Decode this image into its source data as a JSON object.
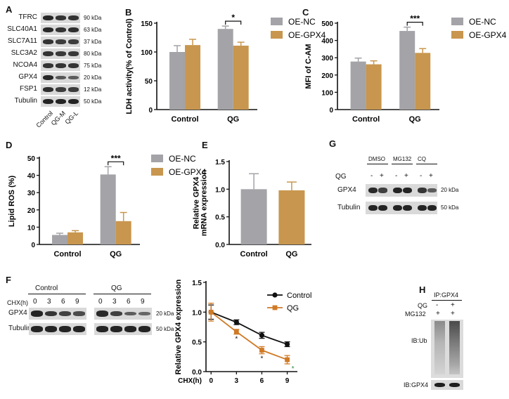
{
  "panels": {
    "a": {
      "letter": "A",
      "rows": [
        {
          "name": "TFRC",
          "kda": "90 kDa",
          "bands": [
            0.9,
            0.8,
            0.8
          ]
        },
        {
          "name": "SLC40A1",
          "kda": "63 kDa",
          "bands": [
            0.9,
            0.8,
            0.85
          ]
        },
        {
          "name": "SLC7A11",
          "kda": "37 kDa",
          "bands": [
            0.8,
            0.7,
            0.7
          ]
        },
        {
          "name": "SLC3A2",
          "kda": "80 kDa",
          "bands": [
            0.8,
            0.75,
            0.75
          ]
        },
        {
          "name": "NCOA4",
          "kda": "75 kDa",
          "bands": [
            0.8,
            0.8,
            0.8
          ]
        },
        {
          "name": "GPX4",
          "kda": "20 kDa",
          "bands": [
            0.9,
            0.45,
            0.4
          ]
        },
        {
          "name": "FSP1",
          "kda": "12 kDa",
          "bands": [
            0.85,
            0.7,
            0.7
          ]
        },
        {
          "name": "Tubulin",
          "kda": "50 kDa",
          "bands": [
            0.95,
            0.95,
            0.95
          ]
        }
      ],
      "lanes": [
        "Control",
        "QG-M",
        "QG-L"
      ]
    },
    "b": {
      "letter": "B"
    },
    "c": {
      "letter": "C"
    },
    "d": {
      "letter": "D"
    },
    "e": {
      "letter": "E"
    },
    "f": {
      "letter": "F",
      "chx_label": "CHX(h)",
      "group_control": "Control",
      "group_qg": "QG",
      "times": [
        "0",
        "3",
        "6",
        "9",
        "0",
        "3",
        "6",
        "9"
      ],
      "rows": [
        {
          "name": "GPX4",
          "kda": "20 kDa",
          "bands": [
            0.95,
            0.8,
            0.7,
            0.6,
            0.9,
            0.7,
            0.45,
            0.35
          ]
        },
        {
          "name": "Tubulin",
          "kda": "50 kDa",
          "bands": [
            0.95,
            0.95,
            0.95,
            0.95,
            0.95,
            0.95,
            0.95,
            0.95
          ]
        }
      ]
    },
    "g": {
      "letter": "G",
      "groups": [
        "DMSO",
        "MG132",
        "CQ"
      ],
      "qg_label": "QG",
      "qg_signs": [
        "-",
        "+",
        "-",
        "+",
        "-",
        "+"
      ],
      "rows": [
        {
          "name": "GPX4",
          "kda": "20 kDa",
          "bands": [
            0.9,
            0.7,
            0.95,
            0.95,
            0.8,
            0.45
          ]
        },
        {
          "name": "Tubulin",
          "kda": "50 kDa",
          "bands": [
            0.95,
            0.95,
            0.95,
            0.95,
            0.95,
            0.95
          ]
        }
      ]
    },
    "h": {
      "letter": "H",
      "ip_label": "IP:GPX4",
      "qg_label": "QG",
      "mg_label": "MG132",
      "qg_signs": [
        "-",
        "+"
      ],
      "mg_signs": [
        "+",
        "+"
      ],
      "ib_ub": "IB:Ub",
      "ib_gpx4": "IB:GPX4"
    }
  },
  "chart_data": [
    {
      "id": "B",
      "type": "bar",
      "categories": [
        "Control",
        "QG"
      ],
      "series": [
        {
          "name": "OE-NC",
          "values": [
            100,
            140
          ],
          "errors": [
            11,
            5
          ],
          "color": "#a3a3a8"
        },
        {
          "name": "OE-GPX4",
          "values": [
            112,
            111
          ],
          "errors": [
            10,
            6
          ],
          "color": "#c8964e"
        }
      ],
      "ylabel": "LDH activity(% of Control)",
      "ylim": [
        0,
        150
      ],
      "yticks": [
        0,
        50,
        100,
        150
      ],
      "significance": [
        {
          "category": "QG",
          "label": "*"
        }
      ],
      "legend": "top-right"
    },
    {
      "id": "C",
      "type": "bar",
      "categories": [
        "Control",
        "QG"
      ],
      "series": [
        {
          "name": "OE-NC",
          "values": [
            278,
            455
          ],
          "errors": [
            20,
            22
          ],
          "color": "#a3a3a8"
        },
        {
          "name": "OE-GPX4",
          "values": [
            262,
            328
          ],
          "errors": [
            20,
            25
          ],
          "color": "#c8964e"
        }
      ],
      "ylabel": "MFI of C-AM",
      "ylim": [
        0,
        500
      ],
      "yticks": [
        0,
        100,
        200,
        300,
        400,
        500
      ],
      "significance": [
        {
          "category": "QG",
          "label": "***"
        }
      ],
      "legend": "top-right"
    },
    {
      "id": "D",
      "type": "bar",
      "categories": [
        "Control",
        "QG"
      ],
      "series": [
        {
          "name": "OE-NC",
          "values": [
            5.5,
            40.5
          ],
          "errors": [
            1.0,
            4.5
          ],
          "color": "#a3a3a8"
        },
        {
          "name": "OE-GPX4",
          "values": [
            7.0,
            13.5
          ],
          "errors": [
            1.0,
            5.0
          ],
          "color": "#c8964e"
        }
      ],
      "ylabel": "Lipid ROS (%)",
      "ylim": [
        0,
        50
      ],
      "yticks": [
        0,
        10,
        20,
        30,
        40,
        50
      ],
      "significance": [
        {
          "category": "QG",
          "label": "***"
        }
      ],
      "legend": "top-right"
    },
    {
      "id": "E",
      "type": "bar",
      "categories": [
        "Control",
        "QG"
      ],
      "series": [
        {
          "name": "",
          "values": [
            1.0,
            0.98
          ],
          "errors": [
            0.28,
            0.15
          ],
          "colors": [
            "#a3a3a8",
            "#c8964e"
          ]
        }
      ],
      "ylabel": "Relative GPX4 mRNA expression",
      "ylim": [
        0,
        1.5
      ],
      "yticks": [
        0.0,
        0.5,
        1.0,
        1.5
      ]
    },
    {
      "id": "F",
      "type": "line",
      "x": [
        0,
        3,
        6,
        9
      ],
      "series": [
        {
          "name": "Control",
          "values": [
            1.0,
            0.83,
            0.61,
            0.46
          ],
          "errors": [
            0.12,
            0.04,
            0.05,
            0.04
          ],
          "color": "#111111",
          "marker": "circle"
        },
        {
          "name": "QG",
          "values": [
            1.0,
            0.67,
            0.36,
            0.2
          ],
          "errors": [
            0.15,
            0.04,
            0.06,
            0.07
          ],
          "color": "#d07a26",
          "marker": "square"
        }
      ],
      "xlabel": "CHX(h)",
      "ylabel": "Relative GPX4 expression",
      "ylim": [
        0,
        1.5
      ],
      "yticks": [
        0.0,
        0.5,
        1.0,
        1.5
      ],
      "xticks": [
        0,
        3,
        6,
        9
      ],
      "significance": [
        {
          "x": 3,
          "label": "*"
        },
        {
          "x": 6,
          "label": "*"
        },
        {
          "x": 9,
          "label": "*"
        }
      ],
      "legend": "top-right"
    }
  ]
}
